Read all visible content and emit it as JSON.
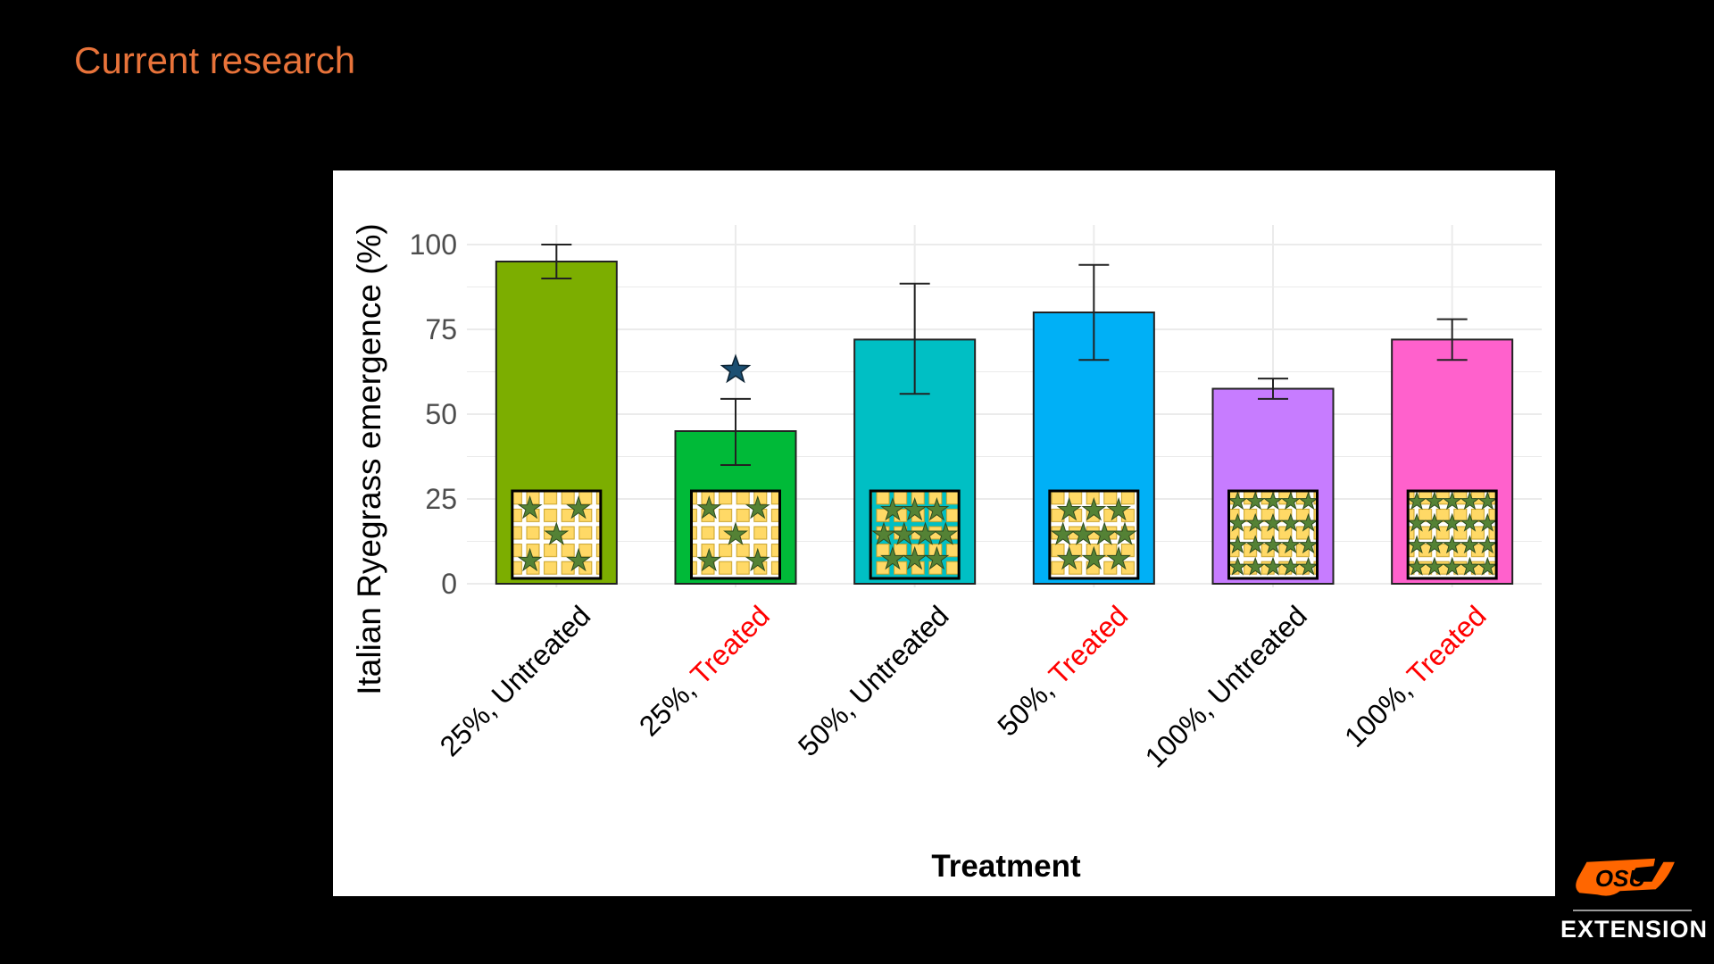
{
  "slide": {
    "title": "Current research",
    "logo_text": "OSU",
    "logo_subtitle": "EXTENSION",
    "title_color": "#E8733A",
    "logo_color": "#FF6600"
  },
  "chart_data": {
    "type": "bar",
    "title": "",
    "xlabel": "Treatment",
    "ylabel": "Italian Ryegrass emergence (%)",
    "ylim": [
      0,
      105
    ],
    "yticks": [
      0,
      25,
      50,
      75,
      100
    ],
    "grid": true,
    "categories": [
      {
        "prefix": "25%, ",
        "suffix": "Untreated",
        "suffix_color": "#000000"
      },
      {
        "prefix": "25%, ",
        "suffix": "Treated",
        "suffix_color": "#FF0000"
      },
      {
        "prefix": "50%, ",
        "suffix": "Untreated",
        "suffix_color": "#000000"
      },
      {
        "prefix": "50%, ",
        "suffix": "Treated",
        "suffix_color": "#FF0000"
      },
      {
        "prefix": "100%, ",
        "suffix": "Untreated",
        "suffix_color": "#000000"
      },
      {
        "prefix": "100%, ",
        "suffix": "Treated",
        "suffix_color": "#FF0000"
      }
    ],
    "values": [
      95,
      45,
      72,
      80,
      57.5,
      72
    ],
    "error_low": [
      90,
      35,
      56,
      66,
      54.5,
      66
    ],
    "error_high": [
      100,
      54.5,
      88.5,
      94,
      60.5,
      78
    ],
    "colors": [
      "#7CAE00",
      "#00BA38",
      "#00BFC4",
      "#00B0F6",
      "#C77CFF",
      "#FF61CC"
    ],
    "significance_marker": {
      "category_index": 1,
      "value": 63,
      "symbol": "star",
      "color": "#1B4F72"
    }
  }
}
